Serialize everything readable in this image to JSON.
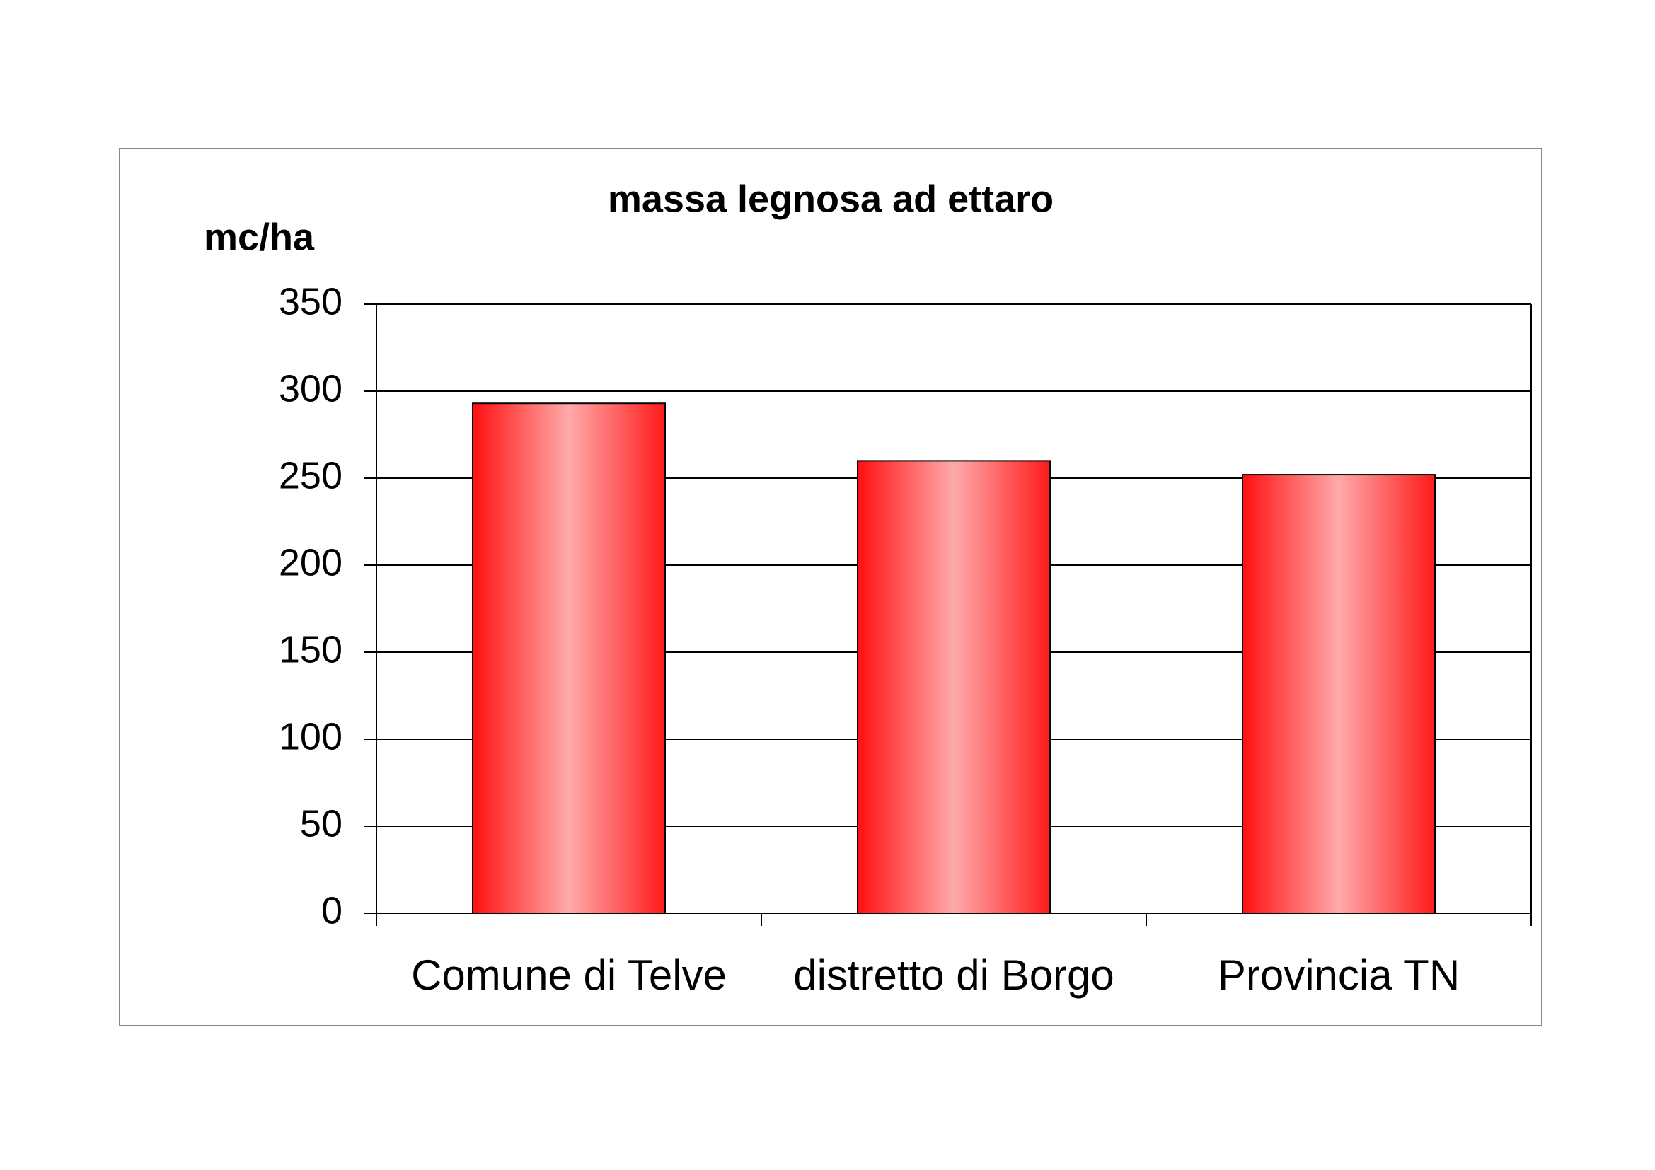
{
  "chart_data": {
    "type": "bar",
    "title": "massa legnosa ad ettaro",
    "y_label": "mc/ha",
    "categories": [
      "Comune di Telve",
      "distretto di Borgo",
      "Provincia TN"
    ],
    "values": [
      293,
      260,
      252
    ],
    "color": "#ff0000",
    "ylim": [
      0,
      350
    ],
    "yticks": [
      0,
      50,
      100,
      150,
      200,
      250,
      300,
      350
    ],
    "grid": true
  }
}
